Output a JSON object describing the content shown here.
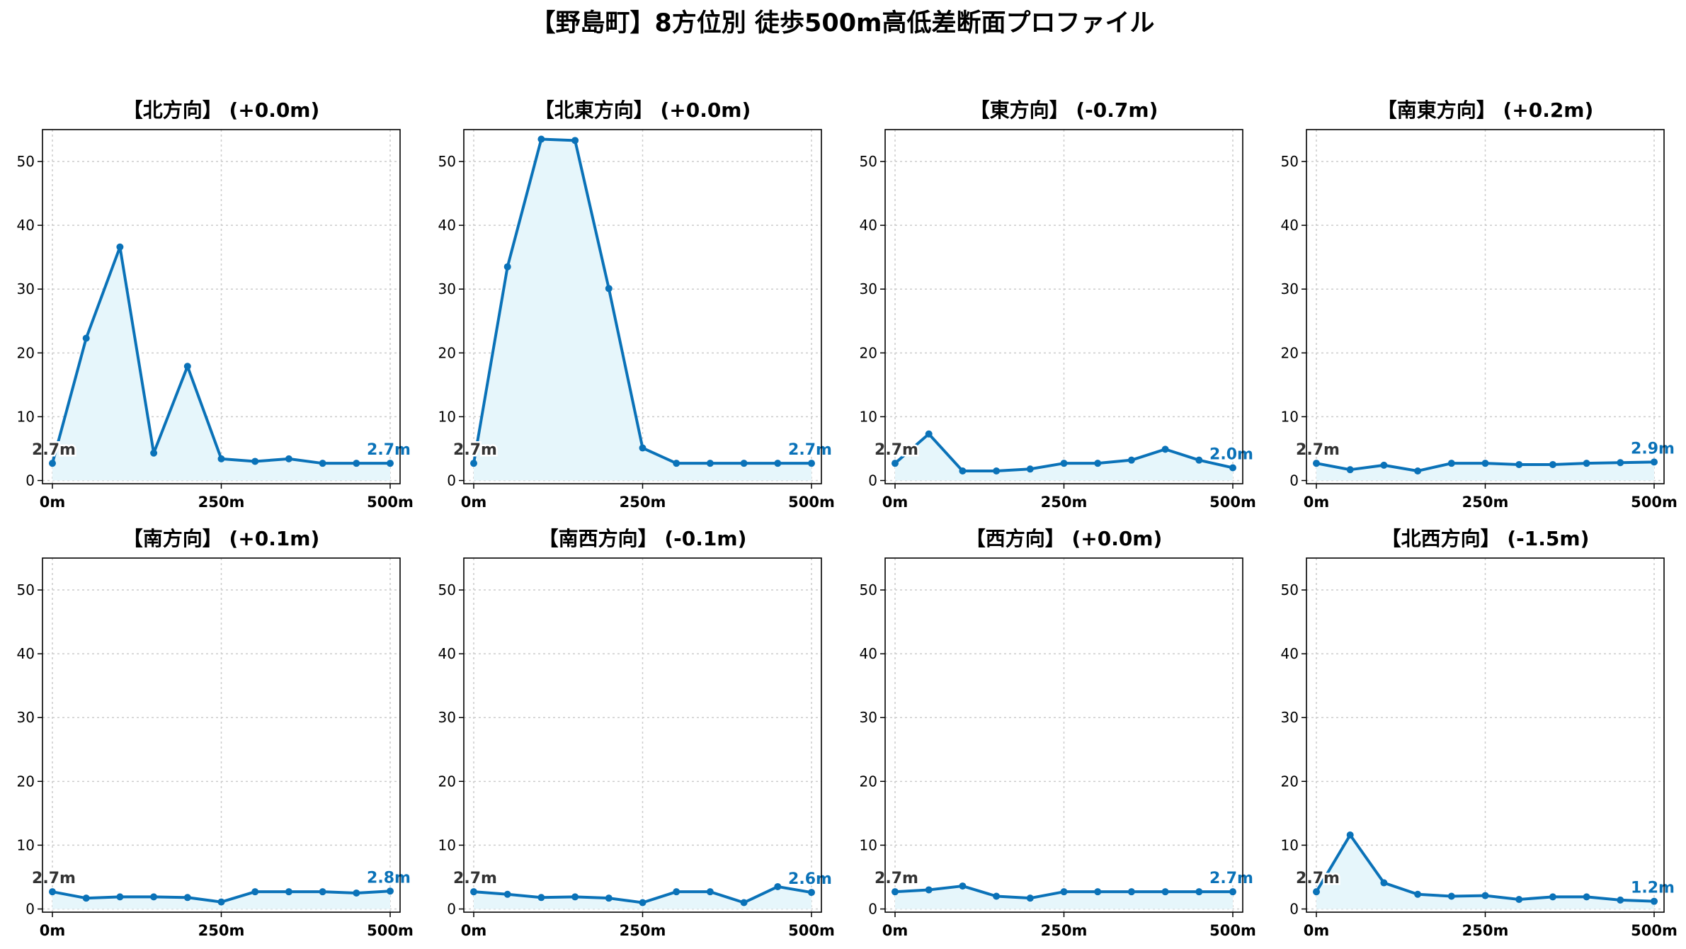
{
  "title": "【野島町】8方位別 徒歩500m高低差断面プロファイル",
  "colors": {
    "line": "#0a72b8",
    "fill": "#e6f6fb",
    "start_label": "#333333",
    "end_label": "#0a72b8"
  },
  "chart_data": [
    {
      "type": "line",
      "title": "【北方向】 (+0.0m)",
      "x": [
        0,
        50,
        100,
        150,
        200,
        250,
        300,
        350,
        400,
        450,
        500
      ],
      "values": [
        2.7,
        22.3,
        36.6,
        4.3,
        17.9,
        3.4,
        3.0,
        3.4,
        2.7,
        2.7,
        2.7
      ],
      "start_label": "2.7m",
      "end_label": "2.7m",
      "xticks": [
        0,
        250,
        500
      ],
      "xtick_labels": [
        "0m",
        "250m",
        "500m"
      ],
      "yticks": [
        0,
        10,
        20,
        30,
        40,
        50
      ],
      "ylim": [
        -0.5,
        55
      ],
      "grid": true
    },
    {
      "type": "line",
      "title": "【北東方向】 (+0.0m)",
      "x": [
        0,
        50,
        100,
        150,
        200,
        250,
        300,
        350,
        400,
        450,
        500
      ],
      "values": [
        2.7,
        33.5,
        53.5,
        53.3,
        30.1,
        5.1,
        2.7,
        2.7,
        2.7,
        2.7,
        2.7
      ],
      "start_label": "2.7m",
      "end_label": "2.7m",
      "xticks": [
        0,
        250,
        500
      ],
      "xtick_labels": [
        "0m",
        "250m",
        "500m"
      ],
      "yticks": [
        0,
        10,
        20,
        30,
        40,
        50
      ],
      "ylim": [
        -0.5,
        55
      ],
      "grid": true
    },
    {
      "type": "line",
      "title": "【東方向】 (-0.7m)",
      "x": [
        0,
        50,
        100,
        150,
        200,
        250,
        300,
        350,
        400,
        450,
        500
      ],
      "values": [
        2.7,
        7.3,
        1.5,
        1.5,
        1.8,
        2.7,
        2.7,
        3.2,
        4.9,
        3.2,
        2.0
      ],
      "start_label": "2.7m",
      "end_label": "2.0m",
      "xticks": [
        0,
        250,
        500
      ],
      "xtick_labels": [
        "0m",
        "250m",
        "500m"
      ],
      "yticks": [
        0,
        10,
        20,
        30,
        40,
        50
      ],
      "ylim": [
        -0.5,
        55
      ],
      "grid": true
    },
    {
      "type": "line",
      "title": "【南東方向】 (+0.2m)",
      "x": [
        0,
        50,
        100,
        150,
        200,
        250,
        300,
        350,
        400,
        450,
        500
      ],
      "values": [
        2.7,
        1.7,
        2.4,
        1.5,
        2.7,
        2.7,
        2.5,
        2.5,
        2.7,
        2.8,
        2.9
      ],
      "start_label": "2.7m",
      "end_label": "2.9m",
      "xticks": [
        0,
        250,
        500
      ],
      "xtick_labels": [
        "0m",
        "250m",
        "500m"
      ],
      "yticks": [
        0,
        10,
        20,
        30,
        40,
        50
      ],
      "ylim": [
        -0.5,
        55
      ],
      "grid": true
    },
    {
      "type": "line",
      "title": "【南方向】 (+0.1m)",
      "x": [
        0,
        50,
        100,
        150,
        200,
        250,
        300,
        350,
        400,
        450,
        500
      ],
      "values": [
        2.7,
        1.7,
        1.9,
        1.9,
        1.8,
        1.1,
        2.7,
        2.7,
        2.7,
        2.5,
        2.8
      ],
      "start_label": "2.7m",
      "end_label": "2.8m",
      "xticks": [
        0,
        250,
        500
      ],
      "xtick_labels": [
        "0m",
        "250m",
        "500m"
      ],
      "yticks": [
        0,
        10,
        20,
        30,
        40,
        50
      ],
      "ylim": [
        -0.5,
        55
      ],
      "grid": true
    },
    {
      "type": "line",
      "title": "【南西方向】 (-0.1m)",
      "x": [
        0,
        50,
        100,
        150,
        200,
        250,
        300,
        350,
        400,
        450,
        500
      ],
      "values": [
        2.7,
        2.3,
        1.8,
        1.9,
        1.7,
        1.0,
        2.7,
        2.7,
        1.0,
        3.5,
        2.6
      ],
      "start_label": "2.7m",
      "end_label": "2.6m",
      "xticks": [
        0,
        250,
        500
      ],
      "xtick_labels": [
        "0m",
        "250m",
        "500m"
      ],
      "yticks": [
        0,
        10,
        20,
        30,
        40,
        50
      ],
      "ylim": [
        -0.5,
        55
      ],
      "grid": true
    },
    {
      "type": "line",
      "title": "【西方向】 (+0.0m)",
      "x": [
        0,
        50,
        100,
        150,
        200,
        250,
        300,
        350,
        400,
        450,
        500
      ],
      "values": [
        2.7,
        3.0,
        3.6,
        2.0,
        1.7,
        2.7,
        2.7,
        2.7,
        2.7,
        2.7,
        2.7
      ],
      "start_label": "2.7m",
      "end_label": "2.7m",
      "xticks": [
        0,
        250,
        500
      ],
      "xtick_labels": [
        "0m",
        "250m",
        "500m"
      ],
      "yticks": [
        0,
        10,
        20,
        30,
        40,
        50
      ],
      "ylim": [
        -0.5,
        55
      ],
      "grid": true
    },
    {
      "type": "line",
      "title": "【北西方向】 (-1.5m)",
      "x": [
        0,
        50,
        100,
        150,
        200,
        250,
        300,
        350,
        400,
        450,
        500
      ],
      "values": [
        2.7,
        11.6,
        4.1,
        2.3,
        2.0,
        2.1,
        1.5,
        1.9,
        1.9,
        1.4,
        1.2
      ],
      "start_label": "2.7m",
      "end_label": "1.2m",
      "xticks": [
        0,
        250,
        500
      ],
      "xtick_labels": [
        "0m",
        "250m",
        "500m"
      ],
      "yticks": [
        0,
        10,
        20,
        30,
        40,
        50
      ],
      "ylim": [
        -0.5,
        55
      ],
      "grid": true
    }
  ]
}
